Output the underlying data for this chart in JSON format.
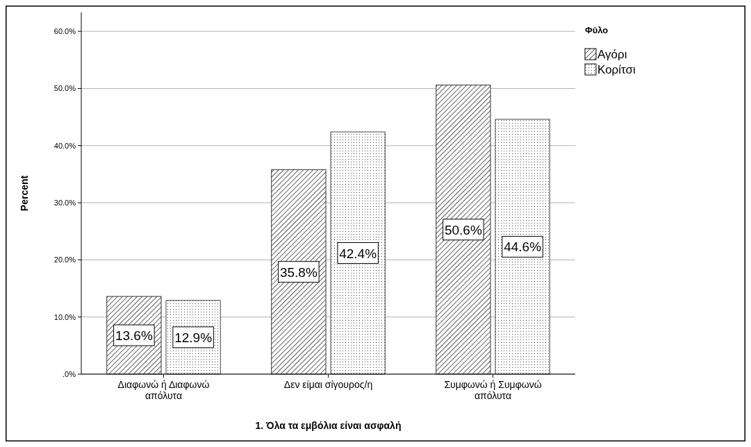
{
  "chart_data": {
    "type": "bar",
    "xlabel": "1. Όλα τα εμβόλια είναι ασφαλή",
    "ylabel": "Percent",
    "legend_title": "Φύλο",
    "legend": "right",
    "grid": "y",
    "categories": [
      "Διαφωνώ ή Διαφωνώ απόλυτα",
      "Δεν είμαι σίγουρος/η",
      "Συμφωνώ ή Συμφωνώ απόλυτα"
    ],
    "ylim": [
      0,
      63.3
    ],
    "yticks": [
      {
        "value": 0,
        "label": ".0%"
      },
      {
        "value": 10,
        "label": "10.0%"
      },
      {
        "value": 20,
        "label": "20.0%"
      },
      {
        "value": 30,
        "label": "30.0%"
      },
      {
        "value": 40,
        "label": "40.0%"
      },
      {
        "value": 50,
        "label": "50.0%"
      },
      {
        "value": 60,
        "label": "60.0%"
      }
    ],
    "series": [
      {
        "name": "Αγόρι",
        "color": "#333333",
        "values": [
          13.6,
          35.8,
          50.6
        ],
        "value_labels": [
          "13.6%",
          "35.8%",
          "50.6%"
        ]
      },
      {
        "name": "Κορίτσι",
        "color": "#444444",
        "values": [
          12.9,
          42.4,
          44.6
        ],
        "value_labels": [
          "12.9%",
          "42.4%",
          "44.6%"
        ]
      }
    ]
  }
}
